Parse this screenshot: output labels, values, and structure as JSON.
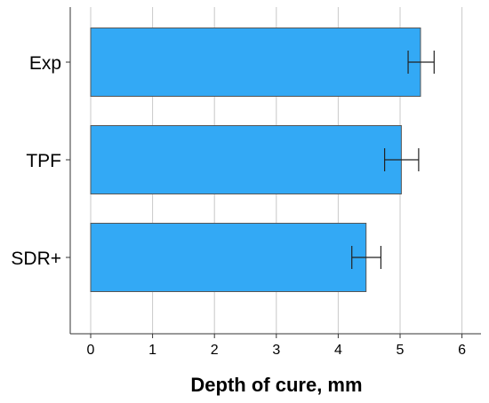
{
  "chart_data": {
    "type": "bar",
    "orientation": "horizontal",
    "categories": [
      "Exp",
      "TPF",
      "SDR+"
    ],
    "values": [
      5.33,
      5.02,
      4.45
    ],
    "error": [
      {
        "low": 5.13,
        "high": 5.55
      },
      {
        "low": 4.75,
        "high": 5.3
      },
      {
        "low": 4.22,
        "high": 4.69
      }
    ],
    "xlabel": "Depth of cure, mm",
    "ylabel": "",
    "xlim": [
      0,
      6
    ],
    "xticks": [
      "0",
      "1",
      "2",
      "3",
      "4",
      "5",
      "6"
    ],
    "grid": true,
    "bar_color": "#33A9F5",
    "bar_edge_color": "#555555"
  }
}
